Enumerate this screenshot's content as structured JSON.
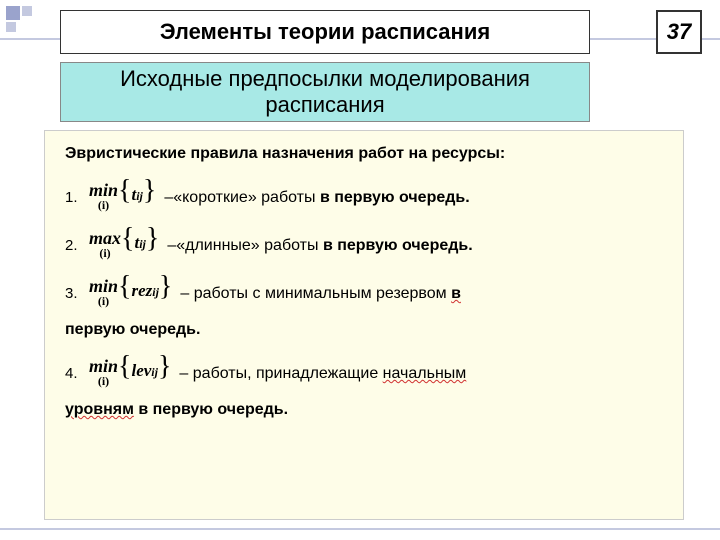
{
  "page_number": "37",
  "header_title": "Элементы теории расписания",
  "subheader_title": "Исходные предпосылки моделирования расписания",
  "intro": "Эвристические правила назначения работ на ресурсы:",
  "rules": [
    {
      "num": "1.",
      "func": "min",
      "func_sub": "(i)",
      "var": "t",
      "var_sub": "ij",
      "desc_prefix": "–«короткие» работы ",
      "desc_bold": "в первую очередь.",
      "continuation": ""
    },
    {
      "num": "2.",
      "func": "max",
      "func_sub": "(i)",
      "var": "t",
      "var_sub": "ij",
      "desc_prefix": "–«длинные» работы ",
      "desc_bold": "в первую очередь.",
      "continuation": ""
    },
    {
      "num": "3.",
      "func": "min",
      "func_sub": "(i)",
      "var": "rez",
      "var_sub": "ij",
      "desc_prefix": "– работы с минимальным резервом ",
      "desc_bold": "в",
      "continuation": "первую очередь."
    },
    {
      "num": "4.",
      "func": "min",
      "func_sub": "(i)",
      "var": "lev",
      "var_sub": "ij",
      "desc_prefix": "– работы, принадлежащие ",
      "desc_underline": "начальным",
      "continuation": "уровням в первую очередь."
    }
  ],
  "colors": {
    "subheader_bg": "#a8e9e6",
    "content_bg": "#fefde8",
    "deco": "#b0b6d6"
  }
}
